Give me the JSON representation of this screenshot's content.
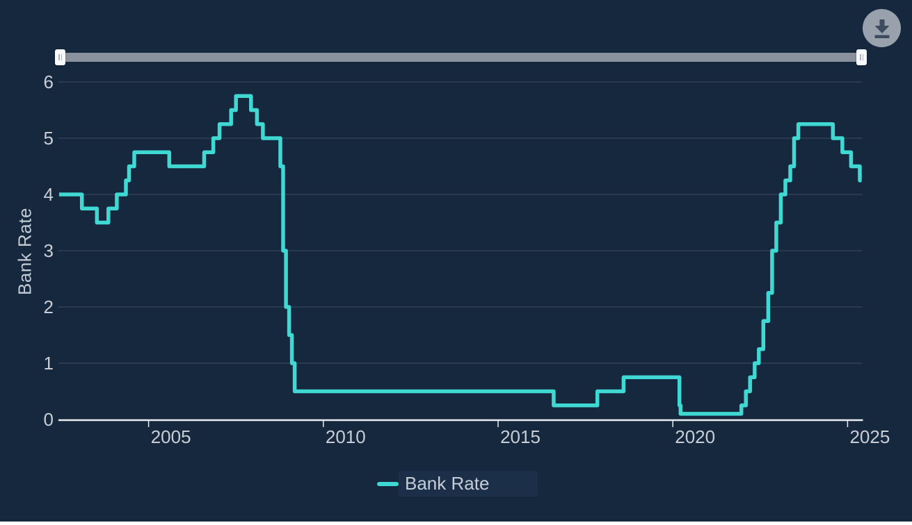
{
  "panel": {
    "background": "#15283E",
    "grid_color": "#3D4D62",
    "axis_line_color": "#E9EDF2",
    "tick_label_color": "#C9CED6"
  },
  "toolbar": {
    "download_button": {
      "icon": "download-icon",
      "circle_color": "#98A1AC",
      "icon_color": "#3E4C60"
    }
  },
  "range_slider": {
    "track_color": "#8A929D",
    "handle_color": "#FAFBFC",
    "min_label": "",
    "max_label": ""
  },
  "axes": {
    "y_title": "Bank Rate",
    "y_ticks": [
      0,
      1,
      2,
      3,
      4,
      5,
      6
    ],
    "x_ticks": [
      2005,
      2010,
      2015,
      2020,
      2025
    ]
  },
  "legend": {
    "items": [
      {
        "label": "Bank Rate",
        "color": "#40D8D2"
      }
    ]
  },
  "chart_data": {
    "type": "line",
    "step": "after",
    "title": "",
    "xlabel": "",
    "ylabel": "Bank Rate",
    "xlim": [
      2002.44,
      2025.42
    ],
    "ylim": [
      0,
      6
    ],
    "grid": "horizontal",
    "legend_position": "bottom",
    "series": [
      {
        "name": "Bank Rate",
        "color": "#40D8D2",
        "points": [
          [
            2002.44,
            4.0
          ],
          [
            2003.09,
            3.75
          ],
          [
            2003.52,
            3.5
          ],
          [
            2003.85,
            3.75
          ],
          [
            2004.09,
            4.0
          ],
          [
            2004.35,
            4.25
          ],
          [
            2004.44,
            4.5
          ],
          [
            2004.59,
            4.75
          ],
          [
            2005.59,
            4.5
          ],
          [
            2006.59,
            4.75
          ],
          [
            2006.85,
            5.0
          ],
          [
            2007.03,
            5.25
          ],
          [
            2007.36,
            5.5
          ],
          [
            2007.5,
            5.75
          ],
          [
            2007.93,
            5.5
          ],
          [
            2008.1,
            5.25
          ],
          [
            2008.27,
            5.0
          ],
          [
            2008.77,
            4.5
          ],
          [
            2008.85,
            3.0
          ],
          [
            2008.93,
            2.0
          ],
          [
            2009.02,
            1.5
          ],
          [
            2009.1,
            1.0
          ],
          [
            2009.18,
            0.5
          ],
          [
            2016.59,
            0.25
          ],
          [
            2017.84,
            0.5
          ],
          [
            2018.59,
            0.75
          ],
          [
            2020.19,
            0.25
          ],
          [
            2020.22,
            0.1
          ],
          [
            2021.96,
            0.25
          ],
          [
            2022.09,
            0.5
          ],
          [
            2022.21,
            0.75
          ],
          [
            2022.34,
            1.0
          ],
          [
            2022.46,
            1.25
          ],
          [
            2022.59,
            1.75
          ],
          [
            2022.73,
            2.25
          ],
          [
            2022.84,
            3.0
          ],
          [
            2022.96,
            3.5
          ],
          [
            2023.09,
            4.0
          ],
          [
            2023.22,
            4.25
          ],
          [
            2023.36,
            4.5
          ],
          [
            2023.47,
            5.0
          ],
          [
            2023.59,
            5.25
          ],
          [
            2024.58,
            5.0
          ],
          [
            2024.85,
            4.75
          ],
          [
            2025.1,
            4.5
          ],
          [
            2025.35,
            4.25
          ]
        ]
      }
    ]
  }
}
